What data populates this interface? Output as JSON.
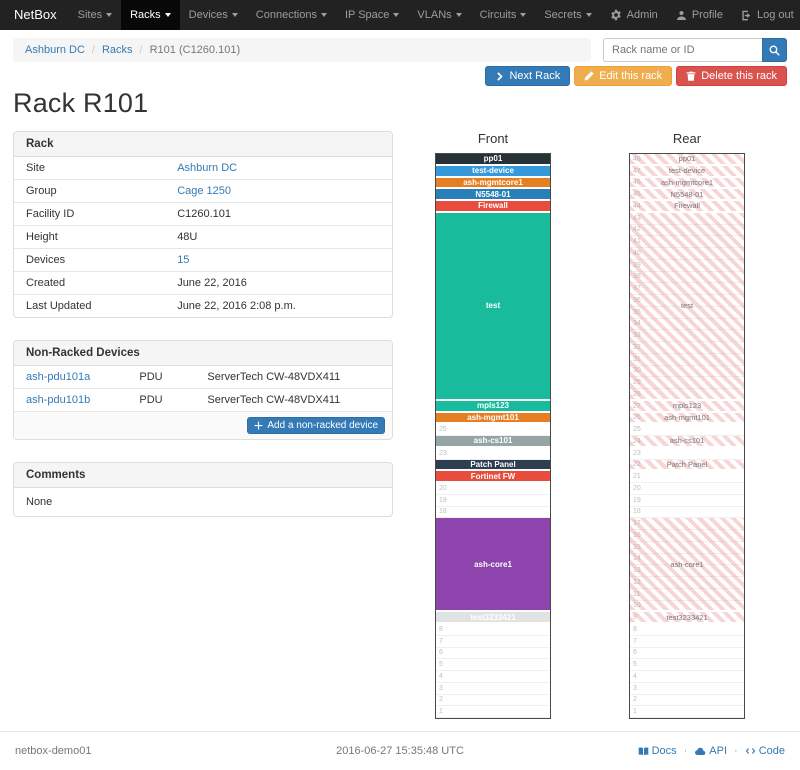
{
  "navbar": {
    "brand": "NetBox",
    "items": [
      {
        "label": "Sites",
        "active": false
      },
      {
        "label": "Racks",
        "active": true
      },
      {
        "label": "Devices",
        "active": false
      },
      {
        "label": "Connections",
        "active": false
      },
      {
        "label": "IP Space",
        "active": false
      },
      {
        "label": "VLANs",
        "active": false
      },
      {
        "label": "Circuits",
        "active": false
      },
      {
        "label": "Secrets",
        "active": false
      }
    ],
    "right_items": [
      {
        "label": "Admin",
        "icon": "gear-icon"
      },
      {
        "label": "Profile",
        "icon": "user-icon"
      },
      {
        "label": "Log out",
        "icon": "logout-icon"
      }
    ]
  },
  "breadcrumb": {
    "items": [
      "Ashburn DC",
      "Racks",
      "R101 (C1260.101)"
    ]
  },
  "search": {
    "placeholder": "Rack name or ID"
  },
  "actions": {
    "next": "Next Rack",
    "edit": "Edit this rack",
    "delete": "Delete this rack"
  },
  "page_title": "Rack R101",
  "rack_panel": {
    "title": "Rack",
    "rows": [
      {
        "label": "Site",
        "value": "Ashburn DC",
        "link": true
      },
      {
        "label": "Group",
        "value": "Cage 1250",
        "link": true
      },
      {
        "label": "Facility ID",
        "value": "C1260.101",
        "link": false
      },
      {
        "label": "Height",
        "value": "48U",
        "link": false
      },
      {
        "label": "Devices",
        "value": "15",
        "link": true
      },
      {
        "label": "Created",
        "value": "June 22, 2016",
        "link": false
      },
      {
        "label": "Last Updated",
        "value": "June 22, 2016 2:08 p.m.",
        "link": false
      }
    ]
  },
  "non_racked": {
    "title": "Non-Racked Devices",
    "rows": [
      {
        "name": "ash-pdu101a",
        "role": "PDU",
        "type": "ServerTech CW-48VDX411"
      },
      {
        "name": "ash-pdu101b",
        "role": "PDU",
        "type": "ServerTech CW-48VDX411"
      }
    ],
    "add_button": "Add a non-racked device"
  },
  "comments": {
    "title": "Comments",
    "value": "None"
  },
  "elevation": {
    "front_label": "Front",
    "rear_label": "Rear",
    "units": 48,
    "devices": [
      {
        "name": "pp01",
        "top_unit": 48,
        "u_height": 1,
        "color": "#263238",
        "full_depth": true
      },
      {
        "name": "test-device",
        "top_unit": 47,
        "u_height": 1,
        "color": "#3498db",
        "full_depth": true
      },
      {
        "name": "ash-mgmtcore1",
        "top_unit": 46,
        "u_height": 1,
        "color": "#e67e22",
        "full_depth": true
      },
      {
        "name": "N5548-01",
        "top_unit": 45,
        "u_height": 1,
        "color": "#2980b9",
        "full_depth": true
      },
      {
        "name": "Firewall",
        "top_unit": 44,
        "u_height": 1,
        "color": "#e74c3c",
        "full_depth": true
      },
      {
        "name": "test",
        "top_unit": 43,
        "u_height": 16,
        "color": "#18bc9c",
        "full_depth": true
      },
      {
        "name": "mpls123",
        "top_unit": 27,
        "u_height": 1,
        "color": "#18bc9c",
        "full_depth": true
      },
      {
        "name": "ash-mgmt101",
        "top_unit": 26,
        "u_height": 1,
        "color": "#e67e22",
        "full_depth": true
      },
      {
        "name": "ash-cs101",
        "top_unit": 24,
        "u_height": 1,
        "color": "#95a5a6",
        "full_depth": true
      },
      {
        "name": "Patch Panel",
        "top_unit": 22,
        "u_height": 1,
        "color": "#2c3e50",
        "full_depth": true
      },
      {
        "name": "Fortinet FW",
        "top_unit": 21,
        "u_height": 1,
        "color": "#e74c3c",
        "full_depth": false
      },
      {
        "name": "ash-core1",
        "top_unit": 17,
        "u_height": 8,
        "color": "#8e44ad",
        "full_depth": true
      },
      {
        "name": "test3233421",
        "top_unit": 9,
        "u_height": 1,
        "color": "#dfe3e4",
        "text_color": "#ffffff",
        "full_depth": true
      }
    ]
  },
  "footer": {
    "hostname": "netbox-demo01",
    "timestamp": "2016-06-27 15:35:48 UTC",
    "links": [
      {
        "label": "Docs",
        "icon": "book-icon"
      },
      {
        "label": "API",
        "icon": "cloud-icon"
      },
      {
        "label": "Code",
        "icon": "code-icon"
      }
    ]
  },
  "icons": {
    "search": "search-icon",
    "next": "chevron-right-icon",
    "edit": "pencil-icon",
    "delete": "trash-icon",
    "add": "plus-icon"
  }
}
